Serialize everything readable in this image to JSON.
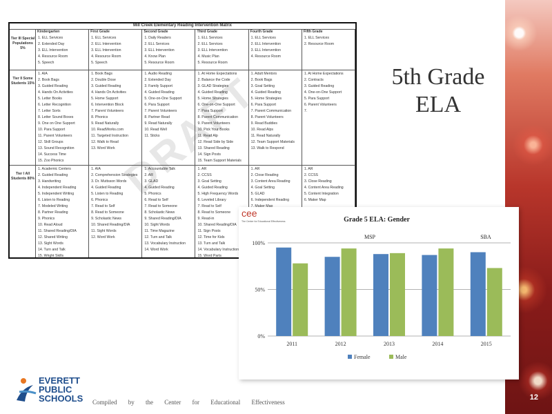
{
  "slide": {
    "title_line1": "5th Grade",
    "title_line2": "ELA",
    "page_number": "12",
    "footer_credit": "Compiled by the Center for Educational Effectiveness",
    "logo": {
      "line1": "EVERETT",
      "line2": "PUBLIC",
      "line3": "SCHOOLS"
    }
  },
  "matrix": {
    "title": "Mill Creek Elementary Reading Intervention Matrix",
    "watermark": "DRAFT",
    "tiers": [
      {
        "label": "Tier III Special Populations 5%"
      },
      {
        "label": "Tier II Some Students 15%"
      },
      {
        "label": "Tier I All Students 80%"
      }
    ],
    "columns": [
      {
        "header": "Kindergarten",
        "tier3": [
          "1. ELL Services",
          "2. Extended Day",
          "3. ELL Intervention",
          "4. Resource Room",
          "5. Speech"
        ],
        "tier2": [
          "1. AIA",
          "2. Book Bags",
          "3. Guided Reading",
          "4. Hands On Activities",
          "5. Letter Books",
          "6. Letter Recognition",
          "7. Letter Sorts",
          "8. Letter Sound Boxes",
          "9. One on One Support",
          "10. Para Support",
          "11. Parent Volunteers",
          "12. Skill Groups",
          "13. Sound Recognition",
          "14. Success Time",
          "15. Zoo Phonics"
        ],
        "tier1": [
          "1. Academic Centers",
          "2. Guided Reading",
          "3. Handwriting",
          "4. Independent Reading",
          "5. Independent Writing",
          "6. Listen to Reading",
          "7. Modeled Writing",
          "8. Partner Reading",
          "9. Phonics",
          "10. Read Aloud",
          "11. Shared Reading/DIA",
          "12. Shared Writing",
          "13. Sight Words",
          "14. Turn and Talk",
          "15. Wright Skills",
          "16. Writing Conferences"
        ]
      },
      {
        "header": "First Grade",
        "tier3": [
          "1. ELL Services",
          "2. ELL Intervention",
          "3. ELL Intervention",
          "4. Resource Room",
          "5. Speech"
        ],
        "tier2": [
          "1. Book Bags",
          "2. Double Dose",
          "3. Guided Reading",
          "4. Hands On Activities",
          "5. Home Support",
          "6. Intervention Block",
          "7. Parent Volunteers",
          "8. Phonics",
          "9. Read Naturally",
          "10. ReadWorks.com",
          "11. Targeted Instruction",
          "12. Walk to Read",
          "13. Word Work"
        ],
        "tier1": [
          "1. AIA",
          "2. Comprehension Strategies",
          "3. Dr. Muttsson Words",
          "4. Guided Reading",
          "5. Listen to Reading",
          "6. Phonics",
          "7. Read to Self",
          "8. Read to Someone",
          "9. Scholastic News",
          "10. Shared Reading/DIA",
          "11. Sight Words",
          "12. Word Work"
        ]
      },
      {
        "header": "Second Grade",
        "tier3": [
          "1. Daily Readers",
          "2. ELL Services",
          "3. ELL Intervention",
          "4. Know Plan",
          "5. Resource Room"
        ],
        "tier2": [
          "1. Audio Reading",
          "2. Extended Day",
          "3. Family Support",
          "4. Guided Reading",
          "5. One-on-One Support",
          "6. Para Support",
          "7. Parent Volunteers",
          "8. Partner Read",
          "9. Read Naturally",
          "10. Read Well",
          "11. Sticks"
        ],
        "tier1": [
          "1. Accountable Talk",
          "2. AR",
          "3. GLAD",
          "4. Guided Reading",
          "5. Phonics",
          "6. Read to Self",
          "7. Read to Someone",
          "8. Scholastic News",
          "9. Shared Reading/DIA",
          "10. Sight Words",
          "11. Time Magazine",
          "12. Turn and Talk",
          "13. Vocabulary Instruction",
          "14. Word Work"
        ]
      },
      {
        "header": "Third Grade",
        "tier3": [
          "1. ELL Services",
          "2. ELL Services",
          "3. ELL Intervention",
          "4. Music Plan",
          "5. Resource Room"
        ],
        "tier2": [
          "1. At Home Expectations",
          "2. Balance the Code",
          "3. GLAD Strategies",
          "4. Guided Reading",
          "5. Home Strategies",
          "6. One-on-One Support",
          "7. Para Support",
          "8. Parent Communication",
          "9. Parent Volunteers",
          "10. Pick Your Books",
          "11. Read Alp",
          "12. Read Side by Side",
          "13. Shared Reading",
          "14. Sign Posts",
          "15. Team Support Materials"
        ],
        "tier1": [
          "1. AR",
          "2. CCSS",
          "3. Goal Setting",
          "4. Guided Reading",
          "5. High Frequency Words",
          "6. Leveled Library",
          "7. Read to Self",
          "8. Read to Someone",
          "9. Read-in",
          "10. Shared Reading/DIA",
          "11. Sign Posts",
          "12. Time for Kids",
          "13. Turn and Talk",
          "14. Vocabulary Instruction",
          "15. Word Parts"
        ]
      },
      {
        "header": "Fourth Grade",
        "tier3": [
          "1. ELL Services",
          "2. ELL Intervention",
          "3. ELL Intervention",
          "4. Resource Room"
        ],
        "tier2": [
          "1. Adult Mentors",
          "2. Book Bags",
          "3. Goal Setting",
          "4. Guided Reading",
          "5. Home Strategies",
          "6. Para Support",
          "7. Parent Communication",
          "8. Parent Volunteers",
          "9. Read Buddies",
          "10. Read Alps",
          "11. Read Naturally",
          "12. Team Support Materials",
          "13. Walk to Respond"
        ],
        "tier1": [
          "1. AR",
          "2. Close Reading",
          "3. Content Area Reading",
          "4. Goal Setting",
          "5. GLAD",
          "6. Independent Reading",
          "7. Maker Map"
        ]
      },
      {
        "header": "Fifth Grade",
        "tier3": [
          "1. ELL Services",
          "2. Resource Room"
        ],
        "tier2": [
          "1. At Home Expectations",
          "2. Contracts",
          "3. Guided Reading",
          "4. One-on-One Support",
          "5. Para Support",
          "6. Parent Volunteers",
          "7."
        ],
        "tier1": [
          "1. AR",
          "2. CCSS",
          "3. Close Reading",
          "4. Content Area Reading",
          "5. Content Integration",
          "6. Maker Map"
        ]
      }
    ]
  },
  "chart_brand": "cee",
  "chart_brand_sub": "The Center for Educational Effectiveness",
  "chart_data": {
    "type": "bar",
    "title": "Grade 5 ELA: Gender",
    "categories": [
      "2011",
      "2012",
      "2013",
      "2014",
      "2015"
    ],
    "series": [
      {
        "name": "Female",
        "color": "#4f81bd",
        "values": [
          95,
          85,
          88,
          87,
          90
        ]
      },
      {
        "name": "Male",
        "color": "#9bbb59",
        "values": [
          78,
          94,
          89,
          94,
          73
        ]
      }
    ],
    "ylim": [
      0,
      100
    ],
    "yticks": [
      "0%",
      "50%",
      "100%"
    ],
    "ytick_values": [
      0,
      50,
      100
    ],
    "annotations": [
      "MSP",
      "SBA"
    ],
    "grid": true,
    "legend": "bottom"
  }
}
